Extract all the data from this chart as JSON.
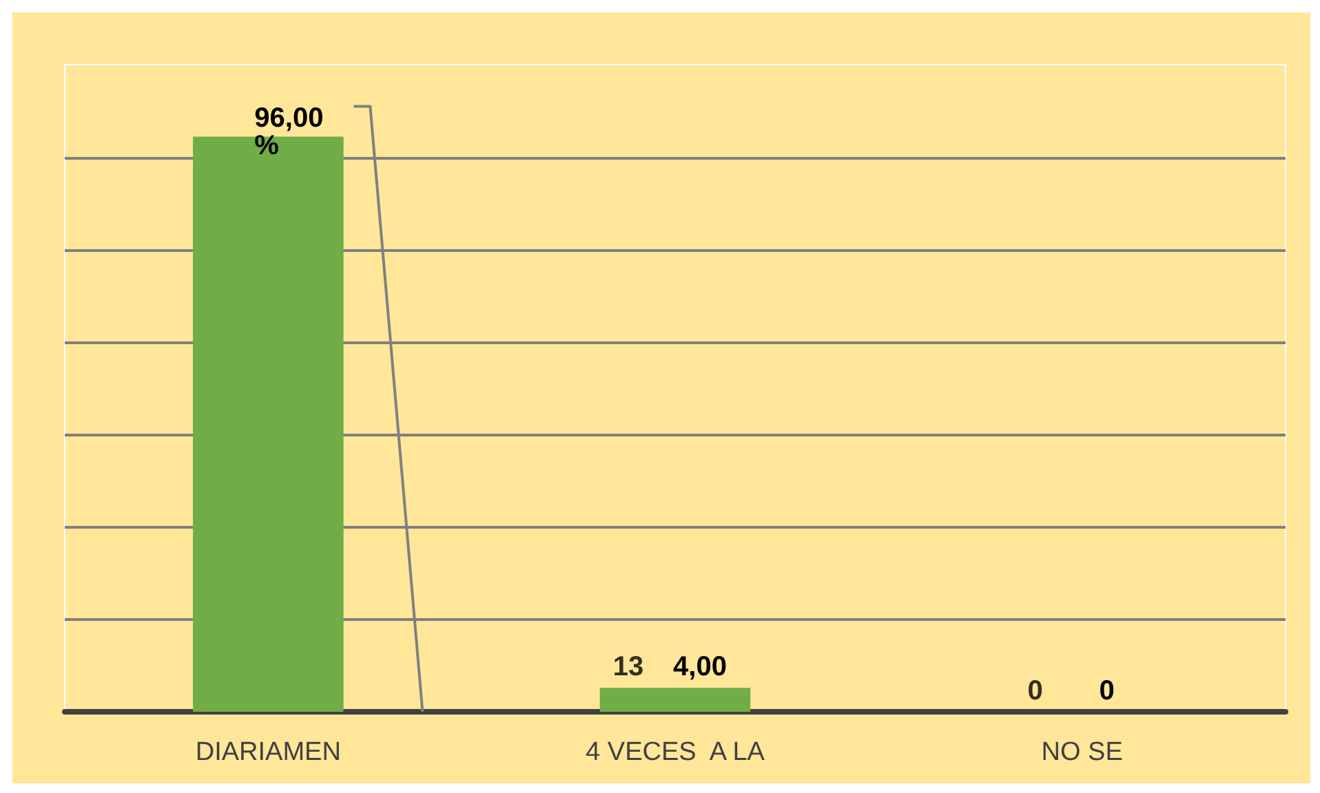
{
  "chart_data": {
    "type": "bar",
    "categories": [
      "DIARIAMEN",
      "4 VECES  A LA",
      "NO SE"
    ],
    "values": [
      96,
      4,
      0
    ],
    "color": "#70ad47",
    "value_labels": [
      "96,00\n%",
      "4,00",
      "0"
    ],
    "annotations": [
      {
        "text": "13",
        "x": "4 VECES  A LA",
        "y": 4
      },
      {
        "text": "0",
        "x": "NO SE",
        "y": 0
      }
    ],
    "ylim": [
      0,
      108
    ],
    "yticks": [
      {
        "value": 0,
        "label": null
      },
      {
        "value": 15.4,
        "label": null
      },
      {
        "value": 30.8,
        "label": null
      },
      {
        "value": 46.2,
        "label": null
      },
      {
        "value": 61.6,
        "label": null
      },
      {
        "value": 77,
        "label": null
      },
      {
        "value": 92.4,
        "label": null
      }
    ],
    "grid": "y"
  }
}
